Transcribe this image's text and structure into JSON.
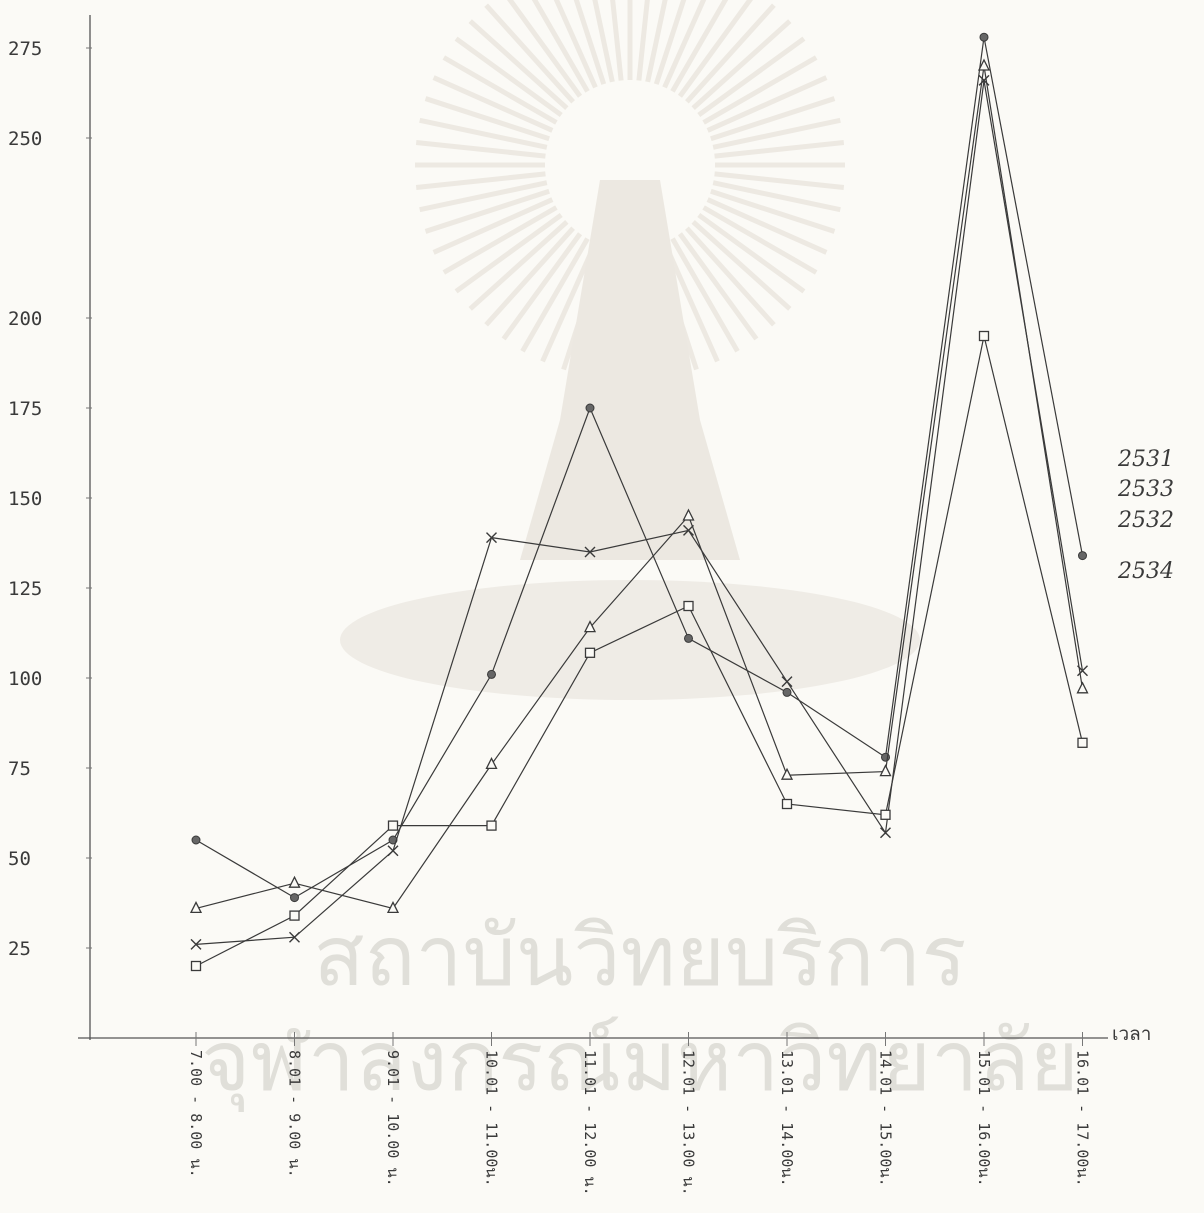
{
  "chart_data": {
    "type": "line",
    "xlabel": "เวลา",
    "ylabel": "",
    "ylim": [
      0,
      300
    ],
    "yticks": [
      25,
      50,
      75,
      100,
      125,
      150,
      175,
      200,
      250,
      275
    ],
    "categories": [
      "7.00 - 8.00 น.",
      "8.01 - 9.00 น.",
      "9.01 - 10.00 น.",
      "10.01 - 11.00น.",
      "11.01 - 12.00 น.",
      "12.01 - 13.00 น.",
      "13.01 - 14.00น.",
      "14.01 - 15.00น.",
      "15.01 - 16.00น.",
      "16.01 - 17.00น."
    ],
    "series": [
      {
        "name": "2532",
        "marker": "dot",
        "values": [
          55,
          39,
          55,
          101,
          175,
          111,
          96,
          78,
          278,
          134
        ]
      },
      {
        "name": "2531",
        "marker": "cross",
        "values": [
          26,
          28,
          52,
          139,
          135,
          141,
          99,
          57,
          266,
          102
        ]
      },
      {
        "name": "2533",
        "marker": "triangle",
        "values": [
          36,
          43,
          36,
          76,
          114,
          145,
          73,
          74,
          270,
          97
        ]
      },
      {
        "name": "2534",
        "marker": "square",
        "values": [
          20,
          34,
          59,
          59,
          107,
          120,
          65,
          62,
          195,
          82
        ]
      }
    ],
    "grid": false,
    "legend": "right-end labels",
    "color": "#3a3a3a"
  },
  "watermark": {
    "line1": "สถาบันวิทยบริการ",
    "line2": "จุฬาลงกรณ์มหาวิทยาลัย"
  }
}
